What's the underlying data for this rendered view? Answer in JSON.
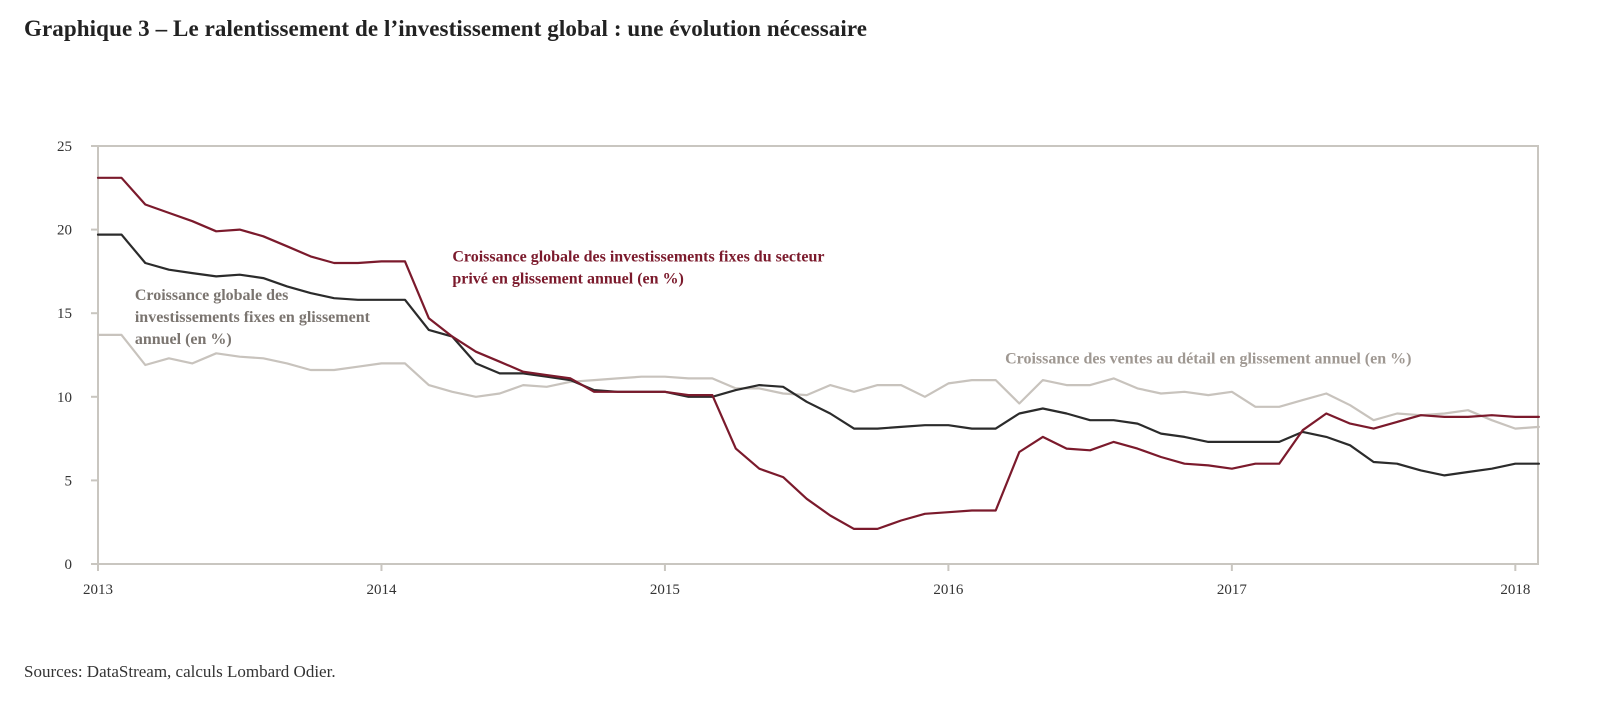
{
  "title": "Graphique 3 – Le ralentissement de l’investissement global : une évolution nécessaire",
  "source": "Sources: DataStream, calculs Lombard Odier.",
  "chart_data": {
    "type": "line",
    "title": "Graphique 3 – Le ralentissement de l’investissement global : une évolution nécessaire",
    "xlabel": "",
    "ylabel": "",
    "xlim": [
      2013,
      2018.08
    ],
    "ylim": [
      0,
      25
    ],
    "x_ticks": [
      "2013",
      "2014",
      "2015",
      "2016",
      "2017",
      "2018"
    ],
    "y_ticks": [
      "0",
      "5",
      "10",
      "15",
      "20",
      "25"
    ],
    "grid": false,
    "colors": {
      "private": "#7b1a2c",
      "total": "#2b2b2b",
      "retail": "#c8c3bd",
      "frame": "#c9c6c0"
    },
    "series": [
      {
        "name": "Croissance globale des investissements fixes du secteur privé en glissement annuel (en %)",
        "label_lines": [
          "Croissance globale des investissements fixes du secteur",
          "privé en glissement annuel (en %)"
        ],
        "color": "#7b1a2c",
        "points": [
          [
            2013.0,
            23.1
          ],
          [
            2013.083,
            23.1
          ],
          [
            2013.167,
            21.5
          ],
          [
            2013.25,
            21.0
          ],
          [
            2013.333,
            20.5
          ],
          [
            2013.417,
            19.9
          ],
          [
            2013.5,
            20.0
          ],
          [
            2013.583,
            19.6
          ],
          [
            2013.667,
            19.0
          ],
          [
            2013.75,
            18.4
          ],
          [
            2013.833,
            18.0
          ],
          [
            2013.917,
            18.0
          ],
          [
            2014.0,
            18.1
          ],
          [
            2014.083,
            18.1
          ],
          [
            2014.167,
            14.7
          ],
          [
            2014.25,
            13.6
          ],
          [
            2014.333,
            12.7
          ],
          [
            2014.417,
            12.1
          ],
          [
            2014.5,
            11.5
          ],
          [
            2014.583,
            11.3
          ],
          [
            2014.667,
            11.1
          ],
          [
            2014.75,
            10.3
          ],
          [
            2014.833,
            10.3
          ],
          [
            2014.917,
            10.3
          ],
          [
            2015.0,
            10.3
          ],
          [
            2015.083,
            10.1
          ],
          [
            2015.167,
            10.1
          ],
          [
            2015.25,
            6.9
          ],
          [
            2015.333,
            5.7
          ],
          [
            2015.417,
            5.2
          ],
          [
            2015.5,
            3.9
          ],
          [
            2015.583,
            2.9
          ],
          [
            2015.667,
            2.1
          ],
          [
            2015.75,
            2.1
          ],
          [
            2015.833,
            2.6
          ],
          [
            2015.917,
            3.0
          ],
          [
            2016.0,
            3.1
          ],
          [
            2016.083,
            3.2
          ],
          [
            2016.167,
            3.2
          ],
          [
            2016.25,
            6.7
          ],
          [
            2016.333,
            7.6
          ],
          [
            2016.417,
            6.9
          ],
          [
            2016.5,
            6.8
          ],
          [
            2016.583,
            7.3
          ],
          [
            2016.667,
            6.9
          ],
          [
            2016.75,
            6.4
          ],
          [
            2016.833,
            6.0
          ],
          [
            2016.917,
            5.9
          ],
          [
            2017.0,
            5.7
          ],
          [
            2017.083,
            6.0
          ],
          [
            2017.167,
            6.0
          ],
          [
            2017.25,
            8.0
          ],
          [
            2017.333,
            9.0
          ],
          [
            2017.417,
            8.4
          ],
          [
            2017.5,
            8.1
          ],
          [
            2017.583,
            8.5
          ],
          [
            2017.667,
            8.9
          ],
          [
            2017.75,
            8.8
          ],
          [
            2017.833,
            8.8
          ],
          [
            2017.917,
            8.9
          ],
          [
            2018.0,
            8.8
          ],
          [
            2018.083,
            8.8
          ]
        ]
      },
      {
        "name": "Croissance globale des investissements fixes en glissement annuel (en %)",
        "label_lines": [
          "Croissance globale des",
          "investissements fixes en glissement",
          "annuel (en %)"
        ],
        "color": "#2b2b2b",
        "points": [
          [
            2013.0,
            19.7
          ],
          [
            2013.083,
            19.7
          ],
          [
            2013.167,
            18.0
          ],
          [
            2013.25,
            17.6
          ],
          [
            2013.333,
            17.4
          ],
          [
            2013.417,
            17.2
          ],
          [
            2013.5,
            17.3
          ],
          [
            2013.583,
            17.1
          ],
          [
            2013.667,
            16.6
          ],
          [
            2013.75,
            16.2
          ],
          [
            2013.833,
            15.9
          ],
          [
            2013.917,
            15.8
          ],
          [
            2014.0,
            15.8
          ],
          [
            2014.083,
            15.8
          ],
          [
            2014.167,
            14.0
          ],
          [
            2014.25,
            13.6
          ],
          [
            2014.333,
            12.0
          ],
          [
            2014.417,
            11.4
          ],
          [
            2014.5,
            11.4
          ],
          [
            2014.583,
            11.2
          ],
          [
            2014.667,
            11.0
          ],
          [
            2014.75,
            10.4
          ],
          [
            2014.833,
            10.3
          ],
          [
            2014.917,
            10.3
          ],
          [
            2015.0,
            10.3
          ],
          [
            2015.083,
            10.0
          ],
          [
            2015.167,
            10.0
          ],
          [
            2015.25,
            10.4
          ],
          [
            2015.333,
            10.7
          ],
          [
            2015.417,
            10.6
          ],
          [
            2015.5,
            9.7
          ],
          [
            2015.583,
            9.0
          ],
          [
            2015.667,
            8.1
          ],
          [
            2015.75,
            8.1
          ],
          [
            2015.833,
            8.2
          ],
          [
            2015.917,
            8.3
          ],
          [
            2016.0,
            8.3
          ],
          [
            2016.083,
            8.1
          ],
          [
            2016.167,
            8.1
          ],
          [
            2016.25,
            9.0
          ],
          [
            2016.333,
            9.3
          ],
          [
            2016.417,
            9.0
          ],
          [
            2016.5,
            8.6
          ],
          [
            2016.583,
            8.6
          ],
          [
            2016.667,
            8.4
          ],
          [
            2016.75,
            7.8
          ],
          [
            2016.833,
            7.6
          ],
          [
            2016.917,
            7.3
          ],
          [
            2017.0,
            7.3
          ],
          [
            2017.083,
            7.3
          ],
          [
            2017.167,
            7.3
          ],
          [
            2017.25,
            7.9
          ],
          [
            2017.333,
            7.6
          ],
          [
            2017.417,
            7.1
          ],
          [
            2017.5,
            6.1
          ],
          [
            2017.583,
            6.0
          ],
          [
            2017.667,
            5.6
          ],
          [
            2017.75,
            5.3
          ],
          [
            2017.833,
            5.5
          ],
          [
            2017.917,
            5.7
          ],
          [
            2018.0,
            6.0
          ],
          [
            2018.083,
            6.0
          ]
        ]
      },
      {
        "name": "Croissance des ventes au détail en glissement annuel (en %)",
        "label_lines": [
          "Croissance des ventes au détail en glissement annuel (en %)"
        ],
        "color": "#c8c3bd",
        "points": [
          [
            2013.0,
            13.7
          ],
          [
            2013.083,
            13.7
          ],
          [
            2013.167,
            11.9
          ],
          [
            2013.25,
            12.3
          ],
          [
            2013.333,
            12.0
          ],
          [
            2013.417,
            12.6
          ],
          [
            2013.5,
            12.4
          ],
          [
            2013.583,
            12.3
          ],
          [
            2013.667,
            12.0
          ],
          [
            2013.75,
            11.6
          ],
          [
            2013.833,
            11.6
          ],
          [
            2013.917,
            11.8
          ],
          [
            2014.0,
            12.0
          ],
          [
            2014.083,
            12.0
          ],
          [
            2014.167,
            10.7
          ],
          [
            2014.25,
            10.3
          ],
          [
            2014.333,
            10.0
          ],
          [
            2014.417,
            10.2
          ],
          [
            2014.5,
            10.7
          ],
          [
            2014.583,
            10.6
          ],
          [
            2014.667,
            10.9
          ],
          [
            2014.75,
            11.0
          ],
          [
            2014.833,
            11.1
          ],
          [
            2014.917,
            11.2
          ],
          [
            2015.0,
            11.2
          ],
          [
            2015.083,
            11.1
          ],
          [
            2015.167,
            11.1
          ],
          [
            2015.25,
            10.5
          ],
          [
            2015.333,
            10.5
          ],
          [
            2015.417,
            10.2
          ],
          [
            2015.5,
            10.1
          ],
          [
            2015.583,
            10.7
          ],
          [
            2015.667,
            10.3
          ],
          [
            2015.75,
            10.7
          ],
          [
            2015.833,
            10.7
          ],
          [
            2015.917,
            10.0
          ],
          [
            2016.0,
            10.8
          ],
          [
            2016.083,
            11.0
          ],
          [
            2016.167,
            11.0
          ],
          [
            2016.25,
            9.6
          ],
          [
            2016.333,
            11.0
          ],
          [
            2016.417,
            10.7
          ],
          [
            2016.5,
            10.7
          ],
          [
            2016.583,
            11.1
          ],
          [
            2016.667,
            10.5
          ],
          [
            2016.75,
            10.2
          ],
          [
            2016.833,
            10.3
          ],
          [
            2016.917,
            10.1
          ],
          [
            2017.0,
            10.3
          ],
          [
            2017.083,
            9.4
          ],
          [
            2017.167,
            9.4
          ],
          [
            2017.25,
            9.8
          ],
          [
            2017.333,
            10.2
          ],
          [
            2017.417,
            9.5
          ],
          [
            2017.5,
            8.6
          ],
          [
            2017.583,
            9.0
          ],
          [
            2017.667,
            8.9
          ],
          [
            2017.75,
            9.0
          ],
          [
            2017.833,
            9.2
          ],
          [
            2017.917,
            8.6
          ],
          [
            2018.0,
            8.1
          ],
          [
            2018.083,
            8.2
          ]
        ]
      }
    ],
    "annotations": [
      {
        "series": 0,
        "color": "#7b1a2c",
        "anchor_x": 2014.25,
        "anchor_y": 18.1
      },
      {
        "series": 1,
        "color": "#7b7570",
        "anchor_x": 2013.13,
        "anchor_y": 15.8
      },
      {
        "series": 2,
        "color": "#9f9892",
        "anchor_x": 2016.2,
        "anchor_y": 12.0
      }
    ]
  }
}
